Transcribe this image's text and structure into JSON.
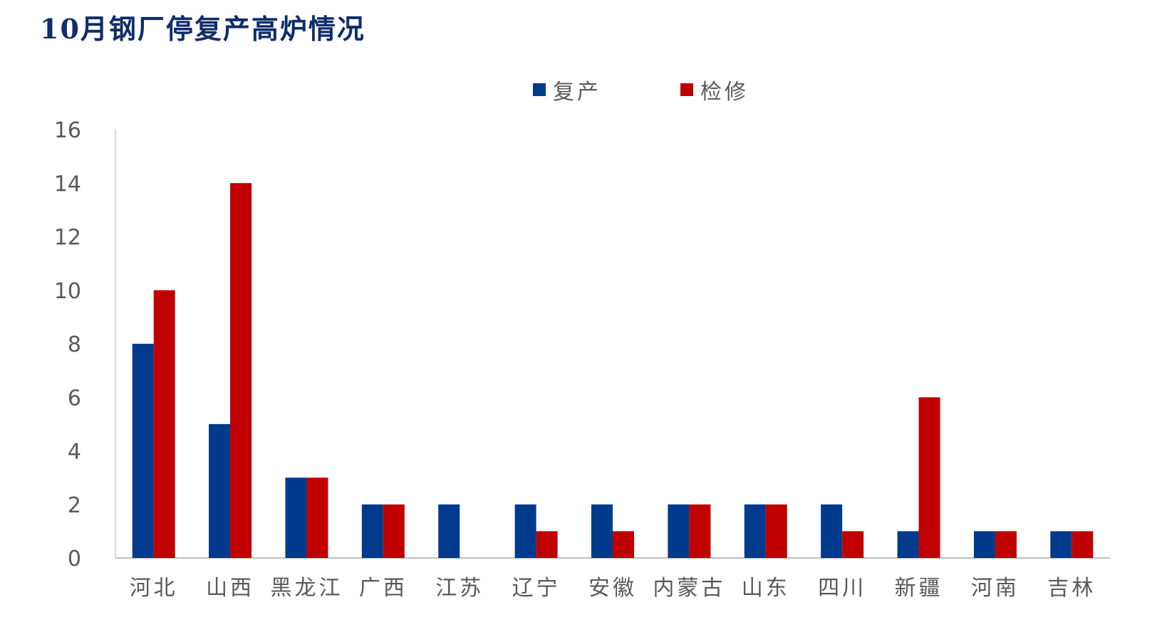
{
  "title": "10月钢厂停复产高炉情况",
  "chart_data": {
    "type": "bar",
    "categories": [
      "河北",
      "山西",
      "黑龙江",
      "广西",
      "江苏",
      "辽宁",
      "安徽",
      "内蒙古",
      "山东",
      "四川",
      "新疆",
      "河南",
      "吉林"
    ],
    "series": [
      {
        "name": "复产",
        "values": [
          8,
          5,
          3,
          2,
          2,
          2,
          2,
          2,
          2,
          2,
          1,
          1,
          1
        ],
        "color": "#003a8c"
      },
      {
        "name": "检修",
        "values": [
          10,
          14,
          3,
          2,
          0,
          1,
          1,
          2,
          2,
          1,
          6,
          1,
          1
        ],
        "color": "#c00000"
      }
    ],
    "ylim": [
      0,
      16
    ],
    "yticks": [
      0,
      2,
      4,
      6,
      8,
      10,
      12,
      14,
      16
    ],
    "grid": false,
    "legend": "top-center",
    "xlabel": "",
    "ylabel": ""
  }
}
